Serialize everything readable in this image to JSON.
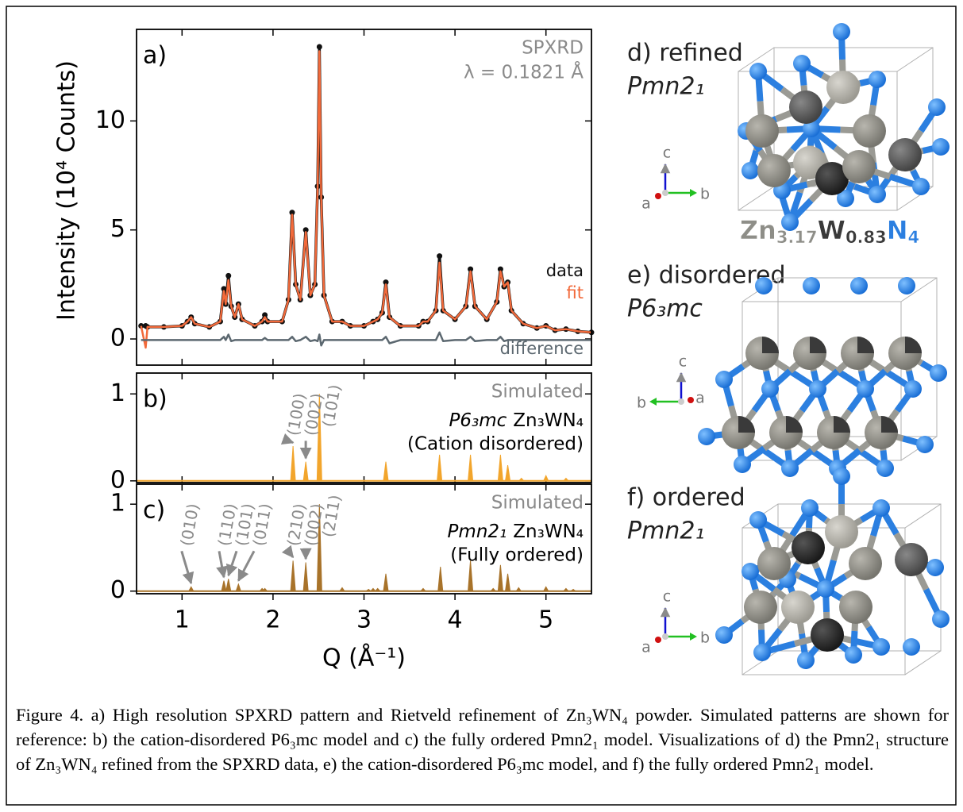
{
  "chart_data": [
    {
      "type": "line",
      "panel_label": "a)",
      "notes": [
        "SPXRD",
        "λ = 0.1821 Å"
      ],
      "ylabel": "Intensity (10⁴ Counts)",
      "x": [
        0.55,
        0.6,
        0.62,
        0.8,
        1.0,
        1.06,
        1.1,
        1.14,
        1.3,
        1.42,
        1.46,
        1.48,
        1.51,
        1.54,
        1.58,
        1.62,
        1.66,
        1.8,
        1.88,
        1.91,
        1.94,
        2.1,
        2.17,
        2.21,
        2.25,
        2.3,
        2.36,
        2.41,
        2.46,
        2.49,
        2.51,
        2.53,
        2.56,
        2.65,
        2.76,
        2.85,
        3.0,
        3.1,
        3.15,
        3.2,
        3.24,
        3.28,
        3.4,
        3.6,
        3.65,
        3.7,
        3.79,
        3.83,
        3.87,
        4.0,
        4.12,
        4.17,
        4.22,
        4.35,
        4.46,
        4.5,
        4.54,
        4.58,
        4.62,
        4.75,
        4.9,
        5.0,
        5.1,
        5.22,
        5.35,
        5.5
      ],
      "series": [
        {
          "name": "data",
          "color": "#111111",
          "markers": true,
          "values": [
            0.6,
            0.6,
            0.55,
            0.55,
            0.6,
            0.8,
            1.0,
            0.7,
            0.55,
            0.8,
            2.3,
            1.6,
            2.9,
            1.5,
            1.0,
            1.6,
            0.9,
            0.6,
            0.8,
            1.1,
            0.8,
            0.8,
            1.8,
            5.8,
            2.5,
            1.8,
            5.0,
            2.0,
            2.5,
            7.0,
            13.4,
            6.5,
            2.0,
            0.8,
            0.8,
            0.6,
            0.6,
            0.8,
            0.9,
            1.2,
            2.6,
            1.0,
            0.6,
            0.6,
            0.8,
            0.8,
            1.3,
            3.8,
            1.3,
            0.9,
            1.5,
            3.2,
            1.5,
            0.9,
            1.7,
            3.2,
            2.4,
            2.6,
            1.3,
            0.7,
            0.5,
            0.6,
            0.4,
            0.45,
            0.35,
            0.3
          ]
        },
        {
          "name": "fit",
          "color": "#f26a3b",
          "markers": false,
          "values": [
            0.6,
            -0.4,
            0.55,
            0.55,
            0.6,
            0.8,
            1.0,
            0.7,
            0.55,
            0.8,
            2.2,
            1.6,
            2.7,
            1.5,
            1.0,
            1.6,
            0.9,
            0.6,
            0.8,
            1.0,
            0.8,
            0.8,
            1.8,
            5.7,
            2.5,
            1.8,
            4.9,
            2.0,
            2.5,
            7.0,
            13.2,
            6.5,
            2.0,
            0.8,
            0.8,
            0.6,
            0.6,
            0.8,
            0.9,
            1.2,
            2.5,
            1.0,
            0.6,
            0.6,
            0.8,
            0.8,
            1.3,
            3.5,
            1.3,
            0.9,
            1.5,
            3.1,
            1.5,
            0.9,
            1.7,
            3.1,
            2.4,
            2.6,
            1.3,
            0.7,
            0.5,
            0.6,
            0.4,
            0.45,
            0.35,
            0.3
          ]
        },
        {
          "name": "difference",
          "color": "#5c6870",
          "markers": false,
          "values": [
            -0.05,
            -0.05,
            -0.05,
            -0.05,
            -0.05,
            -0.05,
            -0.05,
            -0.05,
            -0.05,
            -0.05,
            0.1,
            -0.05,
            0.2,
            -0.1,
            -0.05,
            -0.05,
            -0.05,
            -0.05,
            -0.05,
            0.05,
            -0.05,
            -0.05,
            -0.05,
            0.1,
            -0.1,
            -0.05,
            0.1,
            -0.1,
            -0.05,
            -0.1,
            0.2,
            -0.3,
            -0.05,
            -0.05,
            -0.05,
            -0.05,
            -0.05,
            -0.05,
            -0.05,
            -0.05,
            0.1,
            -0.2,
            -0.05,
            -0.05,
            -0.05,
            -0.05,
            -0.05,
            0.3,
            -0.1,
            -0.05,
            -0.05,
            0.1,
            -0.1,
            -0.05,
            -0.05,
            0.1,
            -0.1,
            -0.05,
            -0.05,
            -0.05,
            -0.05,
            -0.05,
            -0.05,
            -0.05,
            -0.05,
            -0.05
          ]
        }
      ],
      "xlim": [
        0.5,
        5.5
      ],
      "ylim": [
        -1.2,
        14.2
      ],
      "xticks": [
        1,
        2,
        3,
        4,
        5
      ],
      "yticks": [
        0,
        5,
        10
      ]
    },
    {
      "type": "stick",
      "panel_label": "b)",
      "notes": [
        "Simulated"
      ],
      "phase": "P6₃mc",
      "formula": "Zn₃WN₄",
      "description": "(Cation disordered)",
      "color": "#f2a52c",
      "x": [
        2.22,
        2.36,
        2.51,
        3.24,
        3.83,
        4.17,
        4.5,
        4.58,
        4.73,
        5.0,
        5.22
      ],
      "values": [
        0.4,
        0.22,
        1.0,
        0.22,
        0.3,
        0.3,
        0.3,
        0.18,
        0.03,
        0.06,
        0.03
      ],
      "annotations": [
        {
          "text": "(100)",
          "x": 2.22
        },
        {
          "text": "(002)",
          "x": 2.36
        },
        {
          "text": "(101)",
          "x": 2.51
        }
      ],
      "xlim": [
        0.5,
        5.5
      ],
      "ylim": [
        -0.02,
        1.24
      ],
      "xticks": [
        1,
        2,
        3,
        4,
        5
      ],
      "yticks": [
        0,
        1
      ]
    },
    {
      "type": "stick",
      "panel_label": "c)",
      "notes": [
        "Simulated"
      ],
      "phase": "Pmn2₁",
      "formula": "Zn₃WN₄",
      "description": "(Fully ordered)",
      "color": "#a8732a",
      "x": [
        1.1,
        1.46,
        1.51,
        1.62,
        1.88,
        1.91,
        2.22,
        2.36,
        2.51,
        2.76,
        3.05,
        3.1,
        3.15,
        3.24,
        3.65,
        3.84,
        4.17,
        4.42,
        4.5,
        4.58,
        4.7,
        5.0,
        5.22,
        5.3
      ],
      "values": [
        0.05,
        0.12,
        0.14,
        0.08,
        0.03,
        0.03,
        0.35,
        0.33,
        1.0,
        0.04,
        0.02,
        0.03,
        0.03,
        0.2,
        0.03,
        0.28,
        0.35,
        0.03,
        0.3,
        0.2,
        0.04,
        0.05,
        0.03,
        0.02
      ],
      "annotations": [
        {
          "text": "(010)",
          "x": 1.1
        },
        {
          "text": "(110)",
          "x": 1.46
        },
        {
          "text": "(101)",
          "x": 1.51
        },
        {
          "text": "(011)",
          "x": 1.62
        },
        {
          "text": "(210)",
          "x": 2.22
        },
        {
          "text": "(002)",
          "x": 2.36
        },
        {
          "text": "(211)",
          "x": 2.51
        }
      ],
      "xlabel": "Q (Å⁻¹)",
      "xlim": [
        0.5,
        5.5
      ],
      "ylim": [
        -0.03,
        1.23
      ],
      "xticks": [
        1,
        2,
        3,
        4,
        5
      ],
      "yticks": [
        0,
        1
      ]
    }
  ],
  "structures": [
    {
      "label": "d) refined",
      "group": "Pmn2₁",
      "axes": [
        "a",
        "b",
        "c"
      ],
      "formula": [
        {
          "text": "Zn",
          "sub": "3.17"
        },
        {
          "text": "W",
          "sub": "0.83"
        },
        {
          "text": "N",
          "sub": "4"
        }
      ]
    },
    {
      "label": "e) disordered",
      "group": "P6₃mc",
      "axes": [
        "a",
        "b",
        "c"
      ]
    },
    {
      "label": "f) ordered",
      "group": "Pmn2₁",
      "axes": [
        "a",
        "b",
        "c"
      ]
    }
  ],
  "caption": "Figure 4. a) High resolution SPXRD pattern and Rietveld refinement of Zn₃WN₄ powder. Simulated patterns are shown for reference: b) the cation-disordered P6₃mc model and c) the fully ordered Pmn2₁ model. Visualizations of d) the Pmn2₁ structure of Zn₃WN₄ refined from the SPXRD data, e) the cation-disordered P6₃mc model, and f) the fully ordered Pmn2₁ model."
}
